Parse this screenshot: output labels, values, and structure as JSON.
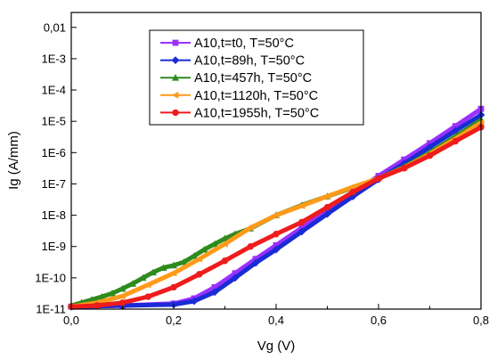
{
  "chart_data": {
    "type": "line",
    "title": "",
    "xlabel": "Vg (V)",
    "ylabel": "Ig (A/mm)",
    "xlim": [
      0.0,
      0.8
    ],
    "ylim": [
      1e-11,
      0.03
    ],
    "y_scale": "log",
    "grid": false,
    "legend_position": "top-left",
    "x_ticks": [
      {
        "value": 0.0,
        "label": "0,0"
      },
      {
        "value": 0.2,
        "label": "0,2"
      },
      {
        "value": 0.4,
        "label": "0,4"
      },
      {
        "value": 0.6,
        "label": "0,6"
      },
      {
        "value": 0.8,
        "label": "0,8"
      }
    ],
    "y_ticks": [
      {
        "value": 1e-11,
        "label": "1E-11"
      },
      {
        "value": 1e-10,
        "label": "1E-10"
      },
      {
        "value": 1e-09,
        "label": "1E-9"
      },
      {
        "value": 1e-08,
        "label": "1E-8"
      },
      {
        "value": 1e-07,
        "label": "1E-7"
      },
      {
        "value": 1e-06,
        "label": "1E-6"
      },
      {
        "value": 1e-05,
        "label": "1E-5"
      },
      {
        "value": 0.0001,
        "label": "1E-4"
      },
      {
        "value": 0.001,
        "label": "1E-3"
      },
      {
        "value": 0.01,
        "label": "0,01"
      }
    ],
    "series": [
      {
        "name": "A10,t=t0, T=50°C",
        "color": "#9b30ff",
        "marker": "square",
        "x": [
          0.0,
          0.1,
          0.2,
          0.24,
          0.28,
          0.32,
          0.36,
          0.4,
          0.45,
          0.5,
          0.55,
          0.6,
          0.65,
          0.7,
          0.75,
          0.8
        ],
        "y": [
          1.2e-11,
          1.3e-11,
          1.5e-11,
          2.2e-11,
          5e-11,
          1.4e-10,
          4e-10,
          1.1e-09,
          4e-09,
          1.4e-08,
          5e-08,
          1.8e-07,
          6e-07,
          2e-06,
          7e-06,
          2.5e-05
        ]
      },
      {
        "name": "A10,t=89h, T=50°C",
        "color": "#1a2bd6",
        "marker": "diamond",
        "x": [
          0.0,
          0.1,
          0.2,
          0.24,
          0.28,
          0.32,
          0.36,
          0.4,
          0.45,
          0.5,
          0.55,
          0.6,
          0.65,
          0.7,
          0.75,
          0.8
        ],
        "y": [
          1.2e-11,
          1.3e-11,
          1.4e-11,
          1.8e-11,
          3.5e-11,
          1e-10,
          3e-10,
          8e-10,
          3e-09,
          1.1e-08,
          4e-08,
          1.4e-07,
          4.5e-07,
          1.5e-06,
          5e-06,
          1.6e-05
        ]
      },
      {
        "name": "A10,t=457h, T=50°C",
        "color": "#2e8b1e",
        "marker": "triangle",
        "x": [
          0.0,
          0.02,
          0.04,
          0.06,
          0.08,
          0.1,
          0.12,
          0.14,
          0.16,
          0.18,
          0.2,
          0.22,
          0.24,
          0.26,
          0.28,
          0.3,
          0.32,
          0.35,
          0.4,
          0.45,
          0.5,
          0.55,
          0.6,
          0.65,
          0.7,
          0.75,
          0.8
        ],
        "y": [
          1.3e-11,
          1.6e-11,
          2e-11,
          2.5e-11,
          3.2e-11,
          4.5e-11,
          6.5e-11,
          1e-10,
          1.5e-10,
          2.1e-10,
          2.5e-10,
          3.2e-10,
          5e-10,
          8e-10,
          1.2e-09,
          1.8e-09,
          2.5e-09,
          3.8e-09,
          1e-08,
          2.1e-08,
          4e-08,
          7.5e-08,
          1.5e-07,
          3.5e-07,
          1e-06,
          3.3e-06,
          1.1e-05
        ]
      },
      {
        "name": "A10,t=1120h, T=50°C",
        "color": "#ff9a1a",
        "marker": "left-triangle",
        "x": [
          0.0,
          0.05,
          0.1,
          0.15,
          0.2,
          0.25,
          0.3,
          0.35,
          0.4,
          0.45,
          0.5,
          0.55,
          0.6,
          0.65,
          0.7,
          0.75,
          0.8
        ],
        "y": [
          1.2e-11,
          1.6e-11,
          2.6e-11,
          6e-11,
          1.4e-10,
          4e-10,
          1.2e-09,
          4e-09,
          1e-08,
          2e-08,
          4e-08,
          8e-08,
          1.5e-07,
          3.3e-07,
          9e-07,
          2.8e-06,
          9e-06
        ]
      },
      {
        "name": "A10,t=1955h, T=50°C",
        "color": "#ee1c1c",
        "marker": "circle",
        "x": [
          0.0,
          0.05,
          0.1,
          0.15,
          0.2,
          0.25,
          0.3,
          0.35,
          0.4,
          0.45,
          0.5,
          0.55,
          0.6,
          0.65,
          0.7,
          0.75,
          0.8
        ],
        "y": [
          1.2e-11,
          1.3e-11,
          1.6e-11,
          2.5e-11,
          5e-11,
          1.3e-10,
          3.5e-10,
          1e-09,
          2.5e-09,
          6e-09,
          1.8e-08,
          5.5e-08,
          1.5e-07,
          3.2e-07,
          8e-07,
          2.3e-06,
          6.5e-06
        ]
      }
    ]
  }
}
